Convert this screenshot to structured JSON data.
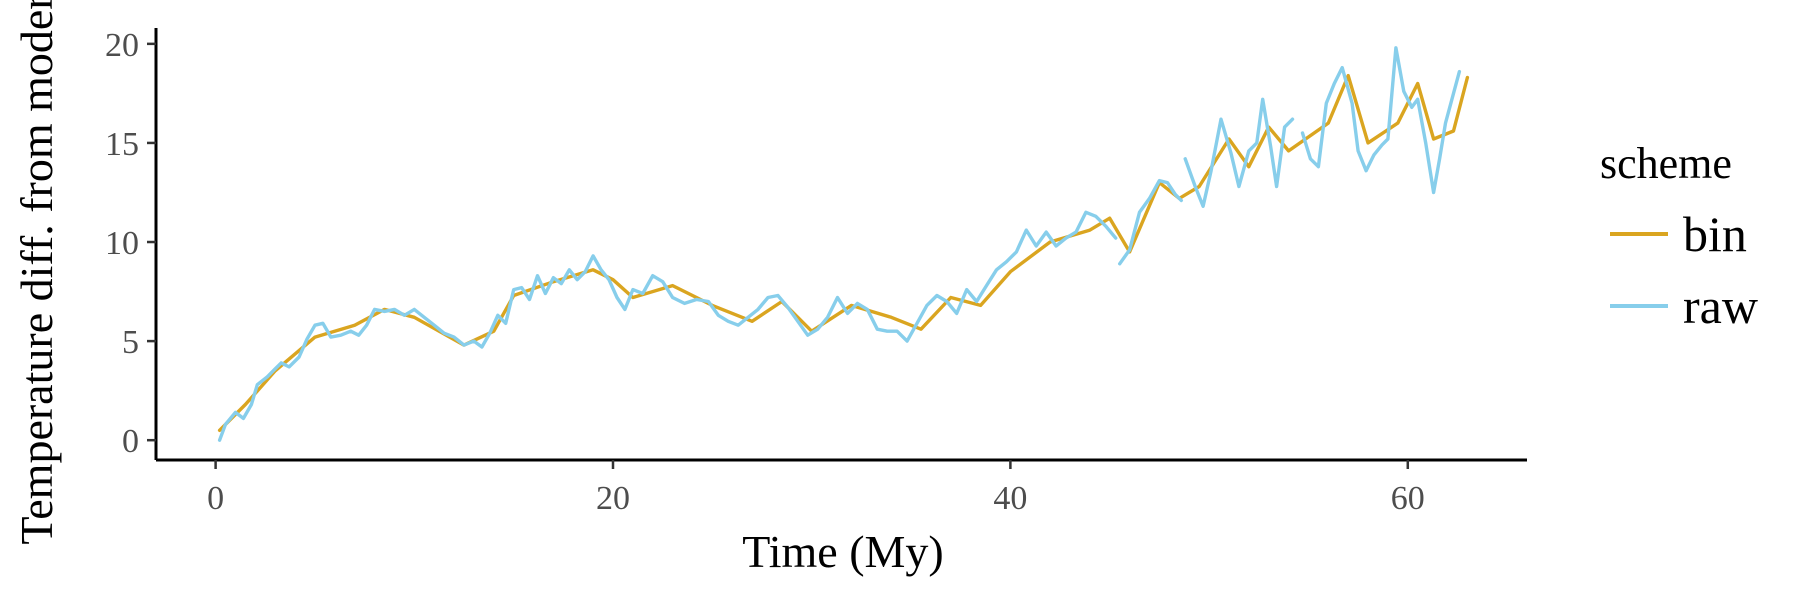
{
  "chart_data": {
    "type": "line",
    "title": "",
    "xlabel": "Time (My)",
    "ylabel": "Temperature diff. from modern",
    "xlim": [
      -3,
      66
    ],
    "ylim": [
      -1,
      20.8
    ],
    "x_ticks": [
      0,
      20,
      40,
      60
    ],
    "y_ticks": [
      0,
      5,
      10,
      15,
      20
    ],
    "grid": false,
    "legend": {
      "title": "scheme",
      "placement": "right"
    },
    "series": [
      {
        "name": "bin",
        "color": "#DAA520",
        "points": [
          [
            0.2,
            0.5
          ],
          [
            1.5,
            1.8
          ],
          [
            3,
            3.5
          ],
          [
            5,
            5.2
          ],
          [
            7,
            5.8
          ],
          [
            8.5,
            6.6
          ],
          [
            10,
            6.2
          ],
          [
            12.5,
            4.8
          ],
          [
            14,
            5.5
          ],
          [
            15,
            7.3
          ],
          [
            17,
            8
          ],
          [
            19,
            8.6
          ],
          [
            20,
            8.1
          ],
          [
            21,
            7.2
          ],
          [
            23,
            7.8
          ],
          [
            25,
            6.8
          ],
          [
            27,
            6
          ],
          [
            28.5,
            7
          ],
          [
            30,
            5.5
          ],
          [
            32,
            6.8
          ],
          [
            34,
            6.2
          ],
          [
            35.5,
            5.6
          ],
          [
            37,
            7.2
          ],
          [
            38.5,
            6.8
          ],
          [
            40,
            8.5
          ],
          [
            42,
            10
          ],
          [
            44,
            10.6
          ],
          [
            45,
            11.2
          ],
          [
            46,
            9.5
          ],
          [
            47.5,
            13
          ],
          [
            48.5,
            12.2
          ],
          [
            49.5,
            12.8
          ],
          [
            51,
            15.2
          ],
          [
            52,
            13.8
          ],
          [
            53,
            15.8
          ],
          [
            54,
            14.6
          ],
          [
            56,
            16
          ],
          [
            57,
            18.4
          ],
          [
            58,
            15
          ],
          [
            59.5,
            16
          ],
          [
            60.5,
            18
          ],
          [
            61.3,
            15.2
          ],
          [
            62.3,
            15.6
          ],
          [
            63,
            18.3
          ]
        ]
      },
      {
        "name": "raw",
        "color": "#87CEEB",
        "segments": [
          [
            [
              0.2,
              0
            ],
            [
              0.5,
              0.8
            ],
            [
              1,
              1.4
            ],
            [
              1.4,
              1.1
            ],
            [
              1.8,
              1.8
            ],
            [
              2.1,
              2.8
            ],
            [
              2.6,
              3.2
            ],
            [
              3,
              3.6
            ],
            [
              3.3,
              3.9
            ],
            [
              3.7,
              3.7
            ],
            [
              4.2,
              4.2
            ],
            [
              4.6,
              5.1
            ],
            [
              5,
              5.8
            ],
            [
              5.4,
              5.9
            ],
            [
              5.8,
              5.2
            ],
            [
              6.3,
              5.3
            ],
            [
              6.8,
              5.5
            ],
            [
              7.2,
              5.3
            ],
            [
              7.6,
              5.8
            ],
            [
              8,
              6.6
            ],
            [
              8.5,
              6.5
            ],
            [
              9,
              6.6
            ],
            [
              9.5,
              6.3
            ],
            [
              10,
              6.6
            ],
            [
              10.5,
              6.2
            ],
            [
              11,
              5.8
            ],
            [
              11.5,
              5.4
            ],
            [
              12,
              5.2
            ],
            [
              12.5,
              4.8
            ],
            [
              13,
              5.0
            ],
            [
              13.4,
              4.7
            ],
            [
              13.8,
              5.4
            ],
            [
              14.2,
              6.3
            ],
            [
              14.6,
              5.9
            ],
            [
              15,
              7.6
            ],
            [
              15.4,
              7.7
            ],
            [
              15.8,
              7.1
            ],
            [
              16.2,
              8.3
            ],
            [
              16.6,
              7.4
            ],
            [
              17,
              8.2
            ],
            [
              17.4,
              7.9
            ],
            [
              17.8,
              8.6
            ],
            [
              18.2,
              8.1
            ],
            [
              18.6,
              8.5
            ],
            [
              19,
              9.3
            ],
            [
              19.4,
              8.6
            ],
            [
              19.8,
              8.1
            ],
            [
              20.2,
              7.2
            ],
            [
              20.6,
              6.6
            ],
            [
              21,
              7.6
            ],
            [
              21.5,
              7.4
            ],
            [
              22,
              8.3
            ],
            [
              22.5,
              8.0
            ],
            [
              23,
              7.2
            ],
            [
              23.6,
              6.9
            ],
            [
              24.2,
              7.1
            ],
            [
              24.8,
              7.0
            ],
            [
              25.3,
              6.3
            ],
            [
              25.8,
              6.0
            ],
            [
              26.3,
              5.8
            ],
            [
              26.8,
              6.2
            ],
            [
              27.3,
              6.6
            ],
            [
              27.8,
              7.2
            ],
            [
              28.3,
              7.3
            ],
            [
              28.8,
              6.7
            ],
            [
              29.3,
              6.0
            ],
            [
              29.8,
              5.3
            ],
            [
              30.3,
              5.6
            ],
            [
              30.8,
              6.2
            ],
            [
              31.3,
              7.2
            ],
            [
              31.8,
              6.4
            ],
            [
              32.3,
              6.9
            ],
            [
              32.8,
              6.6
            ],
            [
              33.3,
              5.6
            ],
            [
              33.8,
              5.5
            ],
            [
              34.3,
              5.5
            ],
            [
              34.8,
              5.0
            ],
            [
              35.3,
              5.9
            ],
            [
              35.8,
              6.8
            ],
            [
              36.3,
              7.3
            ],
            [
              36.8,
              7.0
            ],
            [
              37.3,
              6.4
            ],
            [
              37.8,
              7.6
            ],
            [
              38.3,
              7.0
            ],
            [
              38.8,
              7.8
            ],
            [
              39.3,
              8.6
            ],
            [
              39.8,
              9.0
            ],
            [
              40.3,
              9.5
            ],
            [
              40.8,
              10.6
            ],
            [
              41.3,
              9.8
            ],
            [
              41.8,
              10.5
            ],
            [
              42.3,
              9.8
            ],
            [
              42.8,
              10.2
            ],
            [
              43.3,
              10.5
            ],
            [
              43.8,
              11.5
            ],
            [
              44.3,
              11.3
            ],
            [
              44.8,
              10.8
            ],
            [
              45.3,
              10.2
            ]
          ],
          [
            [
              45.5,
              8.9
            ],
            [
              46,
              9.6
            ],
            [
              46.5,
              11.5
            ],
            [
              47,
              12.2
            ],
            [
              47.5,
              13.1
            ],
            [
              47.9,
              13.0
            ],
            [
              48.3,
              12.4
            ],
            [
              48.6,
              12.1
            ]
          ],
          [
            [
              48.8,
              14.2
            ],
            [
              49.3,
              12.8
            ],
            [
              49.7,
              11.8
            ],
            [
              50.1,
              13.6
            ],
            [
              50.6,
              16.2
            ],
            [
              51.1,
              14.5
            ],
            [
              51.5,
              12.8
            ],
            [
              52,
              14.6
            ],
            [
              52.4,
              15.0
            ],
            [
              52.7,
              17.2
            ],
            [
              53.1,
              14.8
            ],
            [
              53.4,
              12.8
            ],
            [
              53.8,
              15.8
            ],
            [
              54.2,
              16.2
            ]
          ],
          [
            [
              54.7,
              15.5
            ],
            [
              55.1,
              14.2
            ],
            [
              55.5,
              13.8
            ],
            [
              55.9,
              17.0
            ],
            [
              56.3,
              18.0
            ],
            [
              56.7,
              18.8
            ],
            [
              57.2,
              17.0
            ],
            [
              57.5,
              14.6
            ],
            [
              57.9,
              13.6
            ],
            [
              58.3,
              14.4
            ],
            [
              58.7,
              14.9
            ],
            [
              59,
              15.2
            ],
            [
              59.4,
              19.8
            ],
            [
              59.8,
              17.6
            ],
            [
              60.2,
              16.8
            ],
            [
              60.5,
              17.2
            ],
            [
              60.9,
              15.0
            ],
            [
              61.3,
              12.5
            ],
            [
              61.6,
              14.2
            ],
            [
              61.9,
              16.0
            ],
            [
              62.3,
              17.5
            ],
            [
              62.6,
              18.6
            ]
          ]
        ]
      }
    ]
  }
}
